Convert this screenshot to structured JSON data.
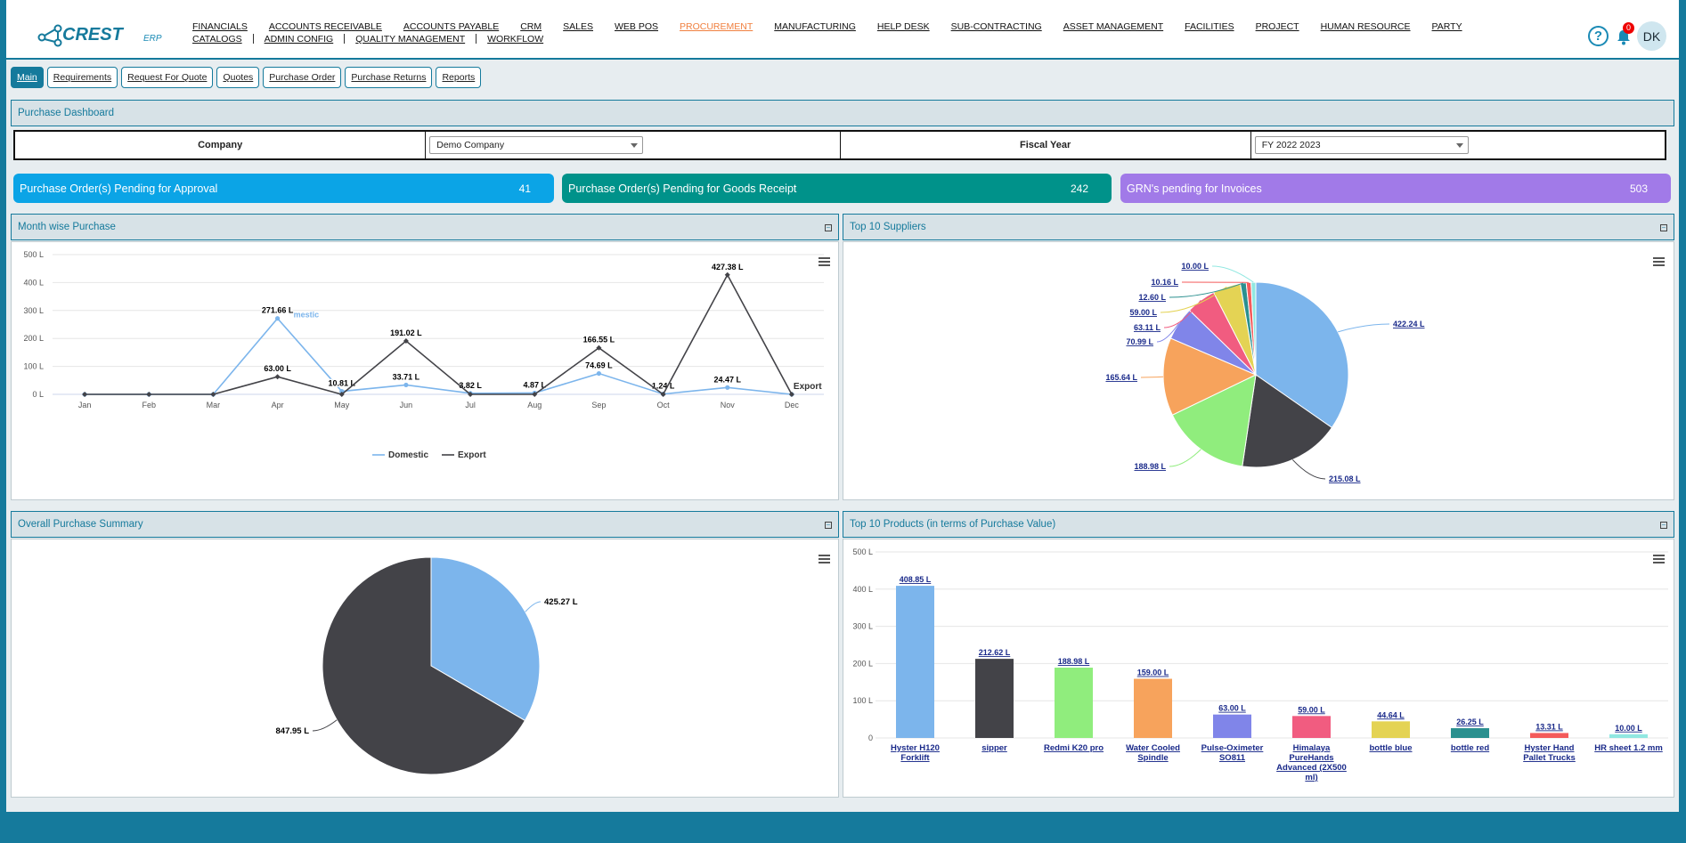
{
  "brand": {
    "name": "CREST",
    "suffix": "ERP"
  },
  "nav": {
    "row1": [
      "FINANCIALS",
      "ACCOUNTS RECEIVABLE",
      "ACCOUNTS PAYABLE",
      "CRM",
      "SALES",
      "WEB POS",
      "PROCUREMENT",
      "MANUFACTURING",
      "HELP DESK",
      "SUB-CONTRACTING",
      "ASSET MANAGEMENT",
      "FACILITIES",
      "PROJECT",
      "HUMAN RESOURCE",
      "PARTY"
    ],
    "row2": [
      "CATALOGS",
      "ADMIN CONFIG",
      "QUALITY MANAGEMENT",
      "WORKFLOW"
    ],
    "active": "PROCUREMENT"
  },
  "user": {
    "notification_count": "0",
    "initials": "DK",
    "help": "?"
  },
  "tabs": [
    "Main",
    "Requirements",
    "Request For Quote",
    "Quotes",
    "Purchase Order",
    "Purchase Returns",
    "Reports"
  ],
  "dashboard": {
    "title": "Purchase Dashboard"
  },
  "filters": {
    "company_label": "Company",
    "company_value": "Demo Company",
    "fiscal_label": "Fiscal Year",
    "fiscal_value": "FY 2022 2023"
  },
  "kpis": [
    {
      "label": "Purchase Order(s) Pending for Approval",
      "value": "41",
      "color": "#0ba4e6"
    },
    {
      "label": "Purchase Order(s) Pending for Goods Receipt",
      "value": "242",
      "color": "#00928a"
    },
    {
      "label": "GRN's pending for Invoices",
      "value": "503",
      "color": "#a17ae8"
    }
  ],
  "panels": {
    "month": "Month wise Purchase",
    "suppliers": "Top 10 Suppliers",
    "summary": "Overall Purchase Summary",
    "products": "Top 10 Products (in terms of Purchase Value)"
  },
  "chart_data": [
    {
      "type": "line",
      "title": "Month wise Purchase",
      "categories": [
        "Jan",
        "Feb",
        "Mar",
        "Apr",
        "May",
        "Jun",
        "Jul",
        "Aug",
        "Sep",
        "Oct",
        "Nov",
        "Dec"
      ],
      "yticks": [
        "0 L",
        "100 L",
        "200 L",
        "300 L",
        "400 L",
        "500 L"
      ],
      "ylim": [
        0,
        500
      ],
      "series": [
        {
          "name": "Domestic",
          "color": "#7cb5ec",
          "values": [
            0,
            0,
            0,
            271.66,
            10.81,
            33.71,
            3.82,
            4.87,
            74.69,
            1.24,
            24.47,
            0
          ],
          "labels": [
            "",
            "",
            "",
            "271.66 L",
            "10.81 L",
            "33.71 L",
            "3.82 L",
            "4.87 L",
            "74.69 L",
            "1.24 L",
            "24.47 L",
            ""
          ]
        },
        {
          "name": "Export",
          "color": "#434348",
          "values": [
            0,
            0,
            0,
            63.0,
            0,
            191.02,
            0,
            0,
            166.55,
            0,
            427.38,
            0
          ],
          "labels": [
            "",
            "",
            "",
            "63.00 L",
            "",
            "191.02 L",
            "",
            "",
            "166.55 L",
            "",
            "427.38 L",
            ""
          ]
        }
      ],
      "annotations": [
        "mestic",
        "Export"
      ],
      "legend": "bottom-center"
    },
    {
      "type": "pie",
      "title": "Top 10 Suppliers",
      "values": [
        422.24,
        215.08,
        188.98,
        165.64,
        70.99,
        63.11,
        59.0,
        12.6,
        10.16,
        10.0
      ],
      "labels": [
        "422.24 L",
        "215.08 L",
        "188.98 L",
        "165.64 L",
        "70.99 L",
        "63.11 L",
        "59.00 L",
        "12.60 L",
        "10.16 L",
        "10.00 L"
      ],
      "colors": [
        "#7cb5ec",
        "#434348",
        "#90ed7d",
        "#f7a35c",
        "#8085e9",
        "#f15c80",
        "#e4d354",
        "#2b908f",
        "#f45b5b",
        "#91e8e1"
      ]
    },
    {
      "type": "pie",
      "title": "Overall Purchase Summary",
      "values": [
        425.27,
        847.95
      ],
      "labels": [
        "425.27 L",
        "847.95 L"
      ],
      "colors": [
        "#7cb5ec",
        "#434348"
      ]
    },
    {
      "type": "bar",
      "title": "Top 10 Products (in terms of Purchase Value)",
      "categories": [
        "Hyster H120 Forklift",
        "sipper",
        "Redmi K20 pro",
        "Water Cooled Spindle",
        "Pulse-Oximeter SO811",
        "Himalaya PureHands Advanced (2X500 ml)",
        "bottle blue",
        "bottle red",
        "Hyster Hand Pallet Trucks",
        "HR sheet 1.2 mm"
      ],
      "values": [
        408.85,
        212.62,
        188.98,
        159.0,
        63.0,
        59.0,
        44.64,
        26.25,
        13.31,
        10.0
      ],
      "labels": [
        "408.85 L",
        "212.62 L",
        "188.98 L",
        "159.00 L",
        "63.00 L",
        "59.00 L",
        "44.64 L",
        "26.25 L",
        "13.31 L",
        "10.00 L"
      ],
      "colors": [
        "#7cb5ec",
        "#434348",
        "#90ed7d",
        "#f7a35c",
        "#8085e9",
        "#f15c80",
        "#e4d354",
        "#2b908f",
        "#f45b5b",
        "#91e8e1"
      ],
      "yticks": [
        "0",
        "100 L",
        "200 L",
        "300 L",
        "400 L",
        "500 L"
      ],
      "ylim": [
        0,
        500
      ]
    }
  ]
}
